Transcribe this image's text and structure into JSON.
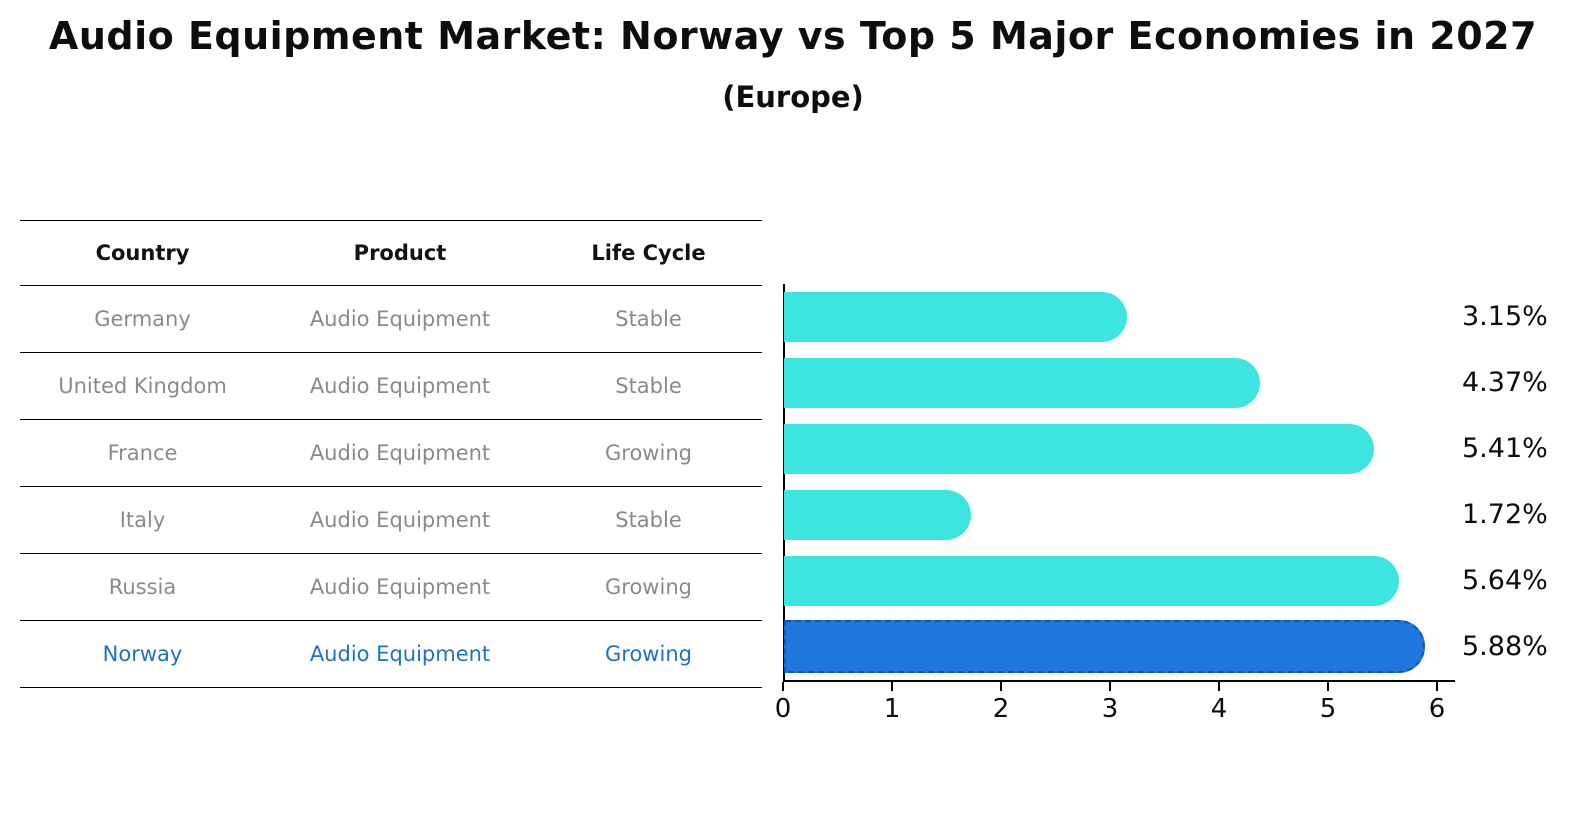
{
  "title": "Audio Equipment Market: Norway vs Top 5 Major Economies in 2027",
  "subtitle": "(Europe)",
  "colors": {
    "bar": "#3DE4E0",
    "highlight_bar": "#1E78DB",
    "highlight_border": "#0C55B8",
    "row_text": "#8A8A8A",
    "highlight_text": "#1B72CE",
    "axis": "#000000"
  },
  "table": {
    "headers": [
      "Country",
      "Product",
      "Life Cycle"
    ]
  },
  "rows": [
    {
      "country": "Germany",
      "product": "Audio Equipment",
      "life_cycle": "Stable",
      "value": 3.15,
      "pct_label": "3.15%",
      "highlight": false
    },
    {
      "country": "United Kingdom",
      "product": "Audio Equipment",
      "life_cycle": "Stable",
      "value": 4.37,
      "pct_label": "4.37%",
      "highlight": false
    },
    {
      "country": "France",
      "product": "Audio Equipment",
      "life_cycle": "Growing",
      "value": 5.41,
      "pct_label": "5.41%",
      "highlight": false
    },
    {
      "country": "Italy",
      "product": "Audio Equipment",
      "life_cycle": "Stable",
      "value": 1.72,
      "pct_label": "1.72%",
      "highlight": false
    },
    {
      "country": "Russia",
      "product": "Audio Equipment",
      "life_cycle": "Growing",
      "value": 5.64,
      "pct_label": "5.64%",
      "highlight": false
    },
    {
      "country": "Norway",
      "product": "Audio Equipment",
      "life_cycle": "Growing",
      "value": 5.88,
      "pct_label": "5.88%",
      "highlight": true
    }
  ],
  "chart_data": {
    "type": "bar",
    "orientation": "horizontal",
    "title": "Audio Equipment Market: Norway vs Top 5 Major Economies in 2027 (Europe)",
    "categories": [
      "Germany",
      "United Kingdom",
      "France",
      "Italy",
      "Russia",
      "Norway"
    ],
    "values": [
      3.15,
      4.37,
      5.41,
      1.72,
      5.64,
      5.88
    ],
    "value_labels": [
      "3.15%",
      "4.37%",
      "5.41%",
      "1.72%",
      "5.64%",
      "5.88%"
    ],
    "xlabel": "",
    "ylabel": "",
    "xlim": [
      0,
      6.15
    ],
    "xticks": [
      0,
      1,
      2,
      3,
      4,
      5,
      6
    ],
    "grid": false,
    "legend": false,
    "bar_color": "#3DE4E0",
    "highlight_index": 5,
    "highlight_color": "#1E78DB"
  }
}
